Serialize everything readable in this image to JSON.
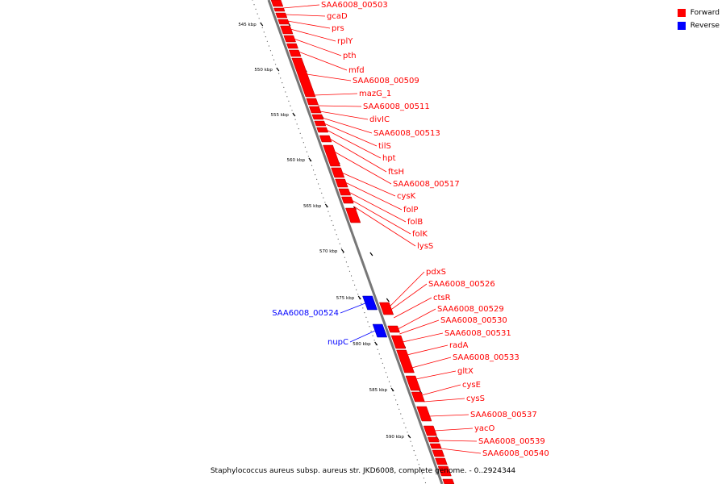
{
  "legend": {
    "forward_label": "Forward",
    "reverse_label": "Reverse",
    "forward_color": "#ff0000",
    "reverse_color": "#0000ff"
  },
  "caption": "Staphylococcus aureus subsp. aureus str. JKD6008, complete genome. - 0..2924344",
  "ticks": [
    "545 kbp",
    "550 kbp",
    "555 kbp",
    "560 kbp",
    "565 kbp",
    "570 kbp",
    "575 kbp",
    "580 kbp",
    "585 kbp",
    "590 kbp"
  ],
  "forward_genes": [
    "SAA6008_00503",
    "gcaD",
    "prs",
    "rplY",
    "pth",
    "mfd",
    "SAA6008_00509",
    "mazG_1",
    "SAA6008_00511",
    "divIC",
    "SAA6008_00513",
    "tilS",
    "hpt",
    "ftsH",
    "SAA6008_00517",
    "cysK",
    "folP",
    "folB",
    "folK",
    "lysS",
    "pdxS",
    "SAA6008_00526",
    "ctsR",
    "SAA6008_00529",
    "SAA6008_00530",
    "SAA6008_00531",
    "radA",
    "SAA6008_00533",
    "gltX",
    "cysE",
    "cysS",
    "SAA6008_00537",
    "yacO",
    "SAA6008_00539",
    "SAA6008_00540"
  ],
  "reverse_genes": [
    "SAA6008_00524",
    "nupC"
  ]
}
